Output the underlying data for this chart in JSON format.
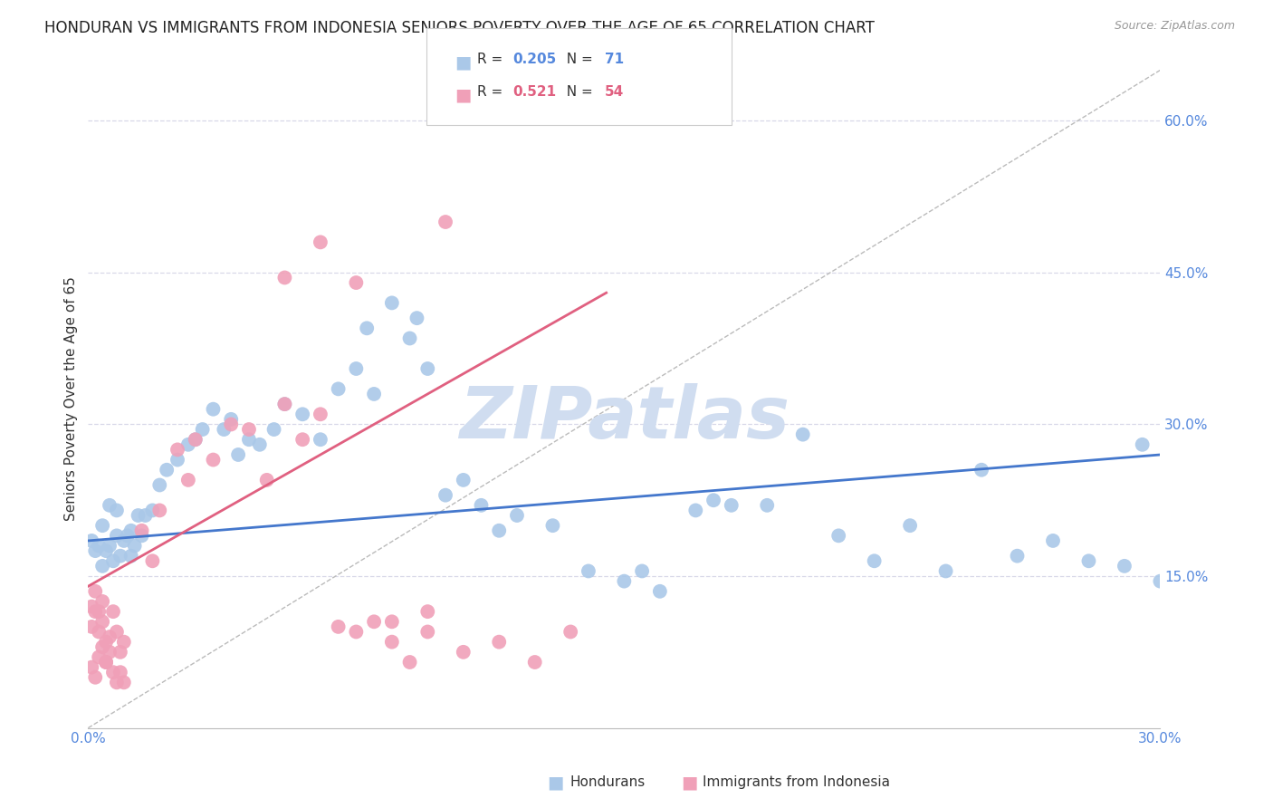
{
  "title": "HONDURAN VS IMMIGRANTS FROM INDONESIA SENIORS POVERTY OVER THE AGE OF 65 CORRELATION CHART",
  "source": "Source: ZipAtlas.com",
  "ylabel": "Seniors Poverty Over the Age of 65",
  "xlim": [
    0,
    0.3
  ],
  "ylim": [
    0,
    0.65
  ],
  "ytick_vals": [
    0.15,
    0.3,
    0.45,
    0.6
  ],
  "ytick_labels": [
    "15.0%",
    "30.0%",
    "45.0%",
    "60.0%"
  ],
  "xtick_vals": [
    0.0,
    0.3
  ],
  "xtick_labels": [
    "0.0%",
    "30.0%"
  ],
  "background_color": "#ffffff",
  "grid_color": "#d8d8e8",
  "watermark_text": "ZIPatlas",
  "watermark_color": "#d0ddf0",
  "title_fontsize": 12,
  "axis_label_fontsize": 11,
  "tick_fontsize": 11,
  "legend_fontsize": 11,
  "series": [
    {
      "name": "Hondurans",
      "R": 0.205,
      "N": 71,
      "scatter_color": "#aac8e8",
      "line_color": "#4477cc",
      "trend_x0": 0.0,
      "trend_y0": 0.185,
      "trend_x1": 0.3,
      "trend_y1": 0.27,
      "points_x": [
        0.001,
        0.002,
        0.003,
        0.004,
        0.005,
        0.006,
        0.007,
        0.008,
        0.009,
        0.01,
        0.011,
        0.012,
        0.013,
        0.014,
        0.015,
        0.004,
        0.006,
        0.008,
        0.012,
        0.016,
        0.018,
        0.02,
        0.022,
        0.025,
        0.028,
        0.03,
        0.032,
        0.035,
        0.038,
        0.04,
        0.042,
        0.045,
        0.048,
        0.052,
        0.055,
        0.06,
        0.065,
        0.07,
        0.075,
        0.078,
        0.08,
        0.085,
        0.09,
        0.092,
        0.095,
        0.1,
        0.105,
        0.11,
        0.115,
        0.12,
        0.13,
        0.14,
        0.15,
        0.155,
        0.16,
        0.17,
        0.175,
        0.18,
        0.19,
        0.2,
        0.21,
        0.22,
        0.23,
        0.24,
        0.25,
        0.26,
        0.27,
        0.28,
        0.29,
        0.295,
        0.3
      ],
      "points_y": [
        0.185,
        0.175,
        0.18,
        0.16,
        0.175,
        0.18,
        0.165,
        0.19,
        0.17,
        0.185,
        0.19,
        0.17,
        0.18,
        0.21,
        0.19,
        0.2,
        0.22,
        0.215,
        0.195,
        0.21,
        0.215,
        0.24,
        0.255,
        0.265,
        0.28,
        0.285,
        0.295,
        0.315,
        0.295,
        0.305,
        0.27,
        0.285,
        0.28,
        0.295,
        0.32,
        0.31,
        0.285,
        0.335,
        0.355,
        0.395,
        0.33,
        0.42,
        0.385,
        0.405,
        0.355,
        0.23,
        0.245,
        0.22,
        0.195,
        0.21,
        0.2,
        0.155,
        0.145,
        0.155,
        0.135,
        0.215,
        0.225,
        0.22,
        0.22,
        0.29,
        0.19,
        0.165,
        0.2,
        0.155,
        0.255,
        0.17,
        0.185,
        0.165,
        0.16,
        0.28,
        0.145
      ]
    },
    {
      "name": "Immigrants from Indonesia",
      "R": 0.521,
      "N": 54,
      "scatter_color": "#f0a0b8",
      "line_color": "#e06080",
      "trend_x0": 0.0,
      "trend_y0": 0.14,
      "trend_x1": 0.145,
      "trend_y1": 0.43,
      "points_x": [
        0.001,
        0.002,
        0.003,
        0.004,
        0.005,
        0.006,
        0.007,
        0.008,
        0.009,
        0.01,
        0.001,
        0.002,
        0.003,
        0.004,
        0.005,
        0.006,
        0.007,
        0.008,
        0.009,
        0.01,
        0.001,
        0.002,
        0.003,
        0.004,
        0.005,
        0.015,
        0.018,
        0.02,
        0.025,
        0.028,
        0.03,
        0.035,
        0.04,
        0.045,
        0.05,
        0.055,
        0.06,
        0.065,
        0.07,
        0.075,
        0.08,
        0.085,
        0.09,
        0.095,
        0.1,
        0.055,
        0.065,
        0.075,
        0.085,
        0.095,
        0.105,
        0.115,
        0.125,
        0.135
      ],
      "points_y": [
        0.06,
        0.05,
        0.07,
        0.08,
        0.065,
        0.09,
        0.055,
        0.045,
        0.075,
        0.085,
        0.1,
        0.115,
        0.095,
        0.105,
        0.085,
        0.075,
        0.115,
        0.095,
        0.055,
        0.045,
        0.12,
        0.135,
        0.115,
        0.125,
        0.065,
        0.195,
        0.165,
        0.215,
        0.275,
        0.245,
        0.285,
        0.265,
        0.3,
        0.295,
        0.245,
        0.32,
        0.285,
        0.31,
        0.1,
        0.095,
        0.105,
        0.085,
        0.065,
        0.115,
        0.5,
        0.445,
        0.48,
        0.44,
        0.105,
        0.095,
        0.075,
        0.085,
        0.065,
        0.095
      ]
    }
  ]
}
